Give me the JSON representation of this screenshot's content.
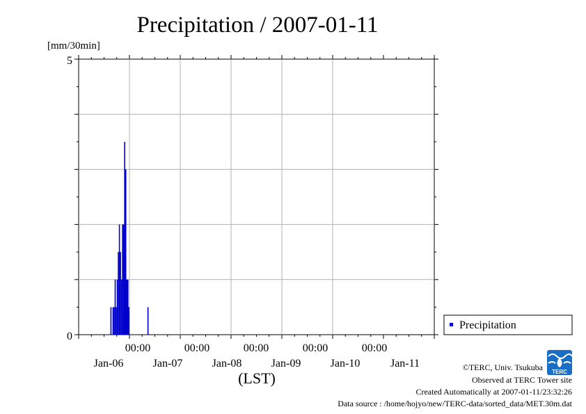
{
  "chart_data": {
    "type": "bar",
    "title": "Precipitation / 2007-01-11",
    "ylabel": "[mm/30min]",
    "xlabel": "(LST)",
    "ylim": [
      0,
      5
    ],
    "y_ticks": [
      "0",
      "5"
    ],
    "x_range": [
      "2007-01-05 00:00",
      "2007-01-11 24:00"
    ],
    "x_ticks": [
      {
        "time": "00:00",
        "date": "Jan-06"
      },
      {
        "time": "00:00",
        "date": "Jan-07"
      },
      {
        "time": "00:00",
        "date": "Jan-08"
      },
      {
        "time": "00:00",
        "date": "Jan-09"
      },
      {
        "time": "00:00",
        "date": "Jan-10"
      },
      {
        "time": "",
        "date": "Jan-11"
      }
    ],
    "grid": true,
    "legend_position": "lower-right, outside plot",
    "series": [
      {
        "name": "Precipitation",
        "color": "#0000cc",
        "points": [
          {
            "t": "2007-01-05 15:00",
            "v": 0.5
          },
          {
            "t": "2007-01-05 16:00",
            "v": 0.5
          },
          {
            "t": "2007-01-05 16:30",
            "v": 0.5
          },
          {
            "t": "2007-01-05 17:00",
            "v": 1.0
          },
          {
            "t": "2007-01-05 17:30",
            "v": 0.5
          },
          {
            "t": "2007-01-05 18:00",
            "v": 1.0
          },
          {
            "t": "2007-01-05 18:30",
            "v": 1.5
          },
          {
            "t": "2007-01-05 19:00",
            "v": 2.0
          },
          {
            "t": "2007-01-05 19:30",
            "v": 1.5
          },
          {
            "t": "2007-01-05 20:00",
            "v": 1.0
          },
          {
            "t": "2007-01-05 20:30",
            "v": 2.0
          },
          {
            "t": "2007-01-05 21:00",
            "v": 2.0
          },
          {
            "t": "2007-01-05 21:30",
            "v": 3.5
          },
          {
            "t": "2007-01-05 22:00",
            "v": 3.0
          },
          {
            "t": "2007-01-05 22:30",
            "v": 1.0
          },
          {
            "t": "2007-01-05 23:00",
            "v": 1.0
          },
          {
            "t": "2007-01-05 23:30",
            "v": 0.5
          },
          {
            "t": "2007-01-06 08:30",
            "v": 0.5
          }
        ]
      }
    ]
  },
  "credits": {
    "copyright": "©TERC, Univ. Tsukuba",
    "observed": "Observed at TERC Tower site",
    "created": "Created Automatically at 2007-01-11/23:32:26",
    "source": "Data source : /home/hojyo/new/TERC-data/sorted_data/MET.30m.dat"
  },
  "logo": {
    "text": "TERC",
    "color": "#1a6fc4"
  }
}
